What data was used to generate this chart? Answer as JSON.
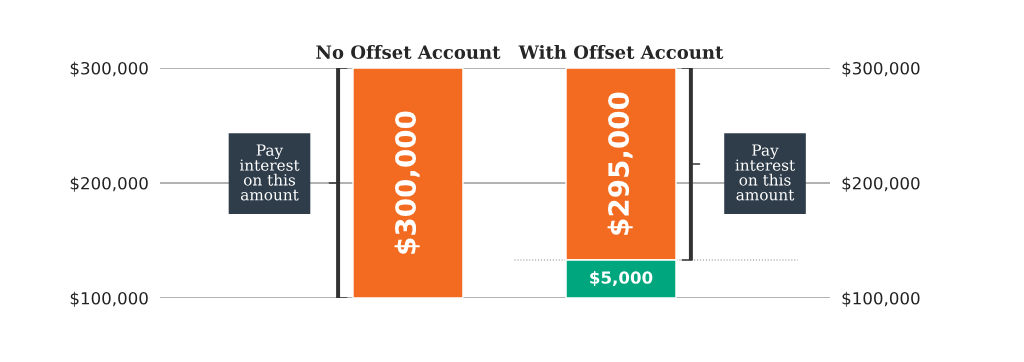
{
  "chart_data": {
    "type": "bar",
    "categories": [
      "No Offset Account",
      "With Offset Account"
    ],
    "series": [
      {
        "color": "#f26b21",
        "values": [
          200000,
          167000
        ],
        "base": [
          100000,
          133000
        ]
      },
      {
        "color": "#00a77e",
        "values": [
          null,
          33000
        ],
        "base": [
          null,
          100000
        ]
      }
    ],
    "ylim": [
      100000,
      300000
    ],
    "yticks": [
      {
        "value": 100000,
        "label": "$100,000"
      },
      {
        "value": 200000,
        "label": "$200,000"
      },
      {
        "value": 300000,
        "label": "$300,000"
      }
    ],
    "y2lim": [
      100000,
      300000
    ],
    "y2ticks": [
      {
        "value": 100000,
        "label": "$100,000"
      },
      {
        "value": 200000,
        "label": "$200,000"
      },
      {
        "value": 300000,
        "label": "$300,000"
      }
    ],
    "grid": "y",
    "ref_lines": [
      {
        "axis": "y",
        "value": 133000,
        "label": null,
        "color": "#888888",
        "line_style": "dotted"
      }
    ],
    "annotations": [
      "Pay\ninterest\non this\namount",
      "Pay\ninterest\non this\namount",
      "$300,000",
      "$295,000",
      "$5,000"
    ]
  }
}
